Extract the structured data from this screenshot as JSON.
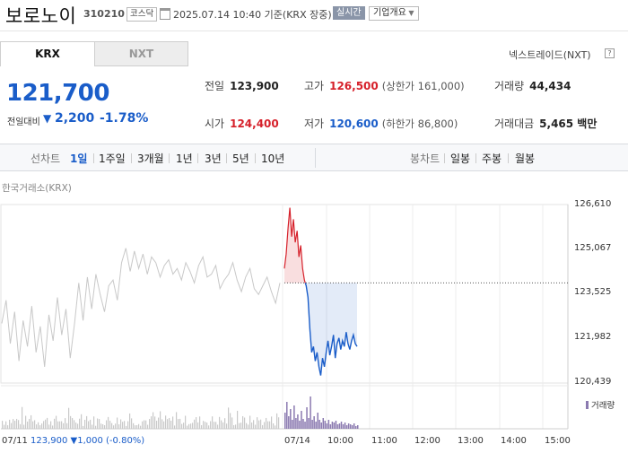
{
  "header": {
    "stock_name": "보로노이",
    "stock_code": "310210",
    "market": "코스닥",
    "datetime": "2025.07.14 10:40 기준(KRX 장중)",
    "realtime": "실시간",
    "company_info": "기업개요"
  },
  "tabs": {
    "krx": "KRX",
    "nxt": "NXT",
    "nxt_trade": "넥스트레이드(NXT)"
  },
  "price": {
    "current": "121,700",
    "change_label": "전일대비",
    "change": "2,200",
    "change_pct": "-1.78%",
    "direction": "down"
  },
  "quote": {
    "prev_label": "전일",
    "prev": "123,900",
    "high_label": "고가",
    "high": "126,500",
    "upper_limit": "(상한가 161,000)",
    "volume_label": "거래량",
    "volume": "44,434",
    "open_label": "시가",
    "open": "124,400",
    "low_label": "저가",
    "low": "120,600",
    "lower_limit": "(하한가 86,800)",
    "amount_label": "거래대금",
    "amount": "5,465 백만"
  },
  "periods": {
    "line_chart": "선차트",
    "items": [
      "1일",
      "1주일",
      "3개월",
      "1년",
      "3년",
      "5년",
      "10년"
    ],
    "selected": "1일",
    "candle_chart": "봉차트",
    "candle_items": [
      "일봉",
      "주봉",
      "월봉"
    ]
  },
  "chart": {
    "exchange_label": "한국거래소(KRX)",
    "y_ticks": [
      "126,610",
      "125,067",
      "123,525",
      "121,982",
      "120,439"
    ],
    "x_ticks": [
      "07/11",
      "07/14",
      "10:00",
      "11:00",
      "12:00",
      "13:00",
      "14:00",
      "15:00"
    ],
    "prev_close_info": "123,900 ▼1,000 (-0.80%)",
    "volume_legend": "거래량",
    "colors": {
      "up": "#d6202a",
      "down": "#1a5dc9",
      "prev_day": "#c8c8c8",
      "volume": "#8b7ab0"
    }
  },
  "chart_data": {
    "type": "line",
    "ylim": [
      120439,
      126610
    ],
    "prev_close": 123900,
    "series": [
      {
        "name": "07/11",
        "values": [
          122500,
          123300,
          121800,
          122900,
          121200,
          122600,
          121700,
          123100,
          121500,
          122400,
          121000,
          122800,
          121900,
          123400,
          122100,
          123000,
          121300,
          122500,
          123900,
          122600,
          124100,
          123000,
          124200,
          123500,
          122900,
          123800,
          124000,
          123300,
          124600,
          125100,
          124300,
          125000,
          124400,
          124900,
          124200,
          124800,
          124600,
          124100,
          124500,
          124700,
          124200,
          124400,
          124000,
          124600,
          124300,
          123900,
          124500,
          124800,
          124100,
          124200,
          124500,
          123700,
          124000,
          124200,
          124600,
          124000,
          123600,
          124100,
          124400,
          123700,
          123500,
          123800,
          124100,
          123600,
          123200,
          123900
        ]
      },
      {
        "name": "07/14",
        "values": [
          124400,
          124900,
          125800,
          126500,
          125500,
          126100,
          125300,
          125700,
          124800,
          125200,
          124400,
          124000,
          123800,
          123400,
          122300,
          121500,
          121700,
          121200,
          121500,
          121000,
          120700,
          121300,
          121000,
          121500,
          121900,
          121400,
          121700,
          122100,
          121300,
          121800,
          122000,
          121600,
          121900,
          121700,
          122200,
          121800,
          121600,
          121900,
          122100,
          121800,
          121700
        ]
      }
    ]
  }
}
